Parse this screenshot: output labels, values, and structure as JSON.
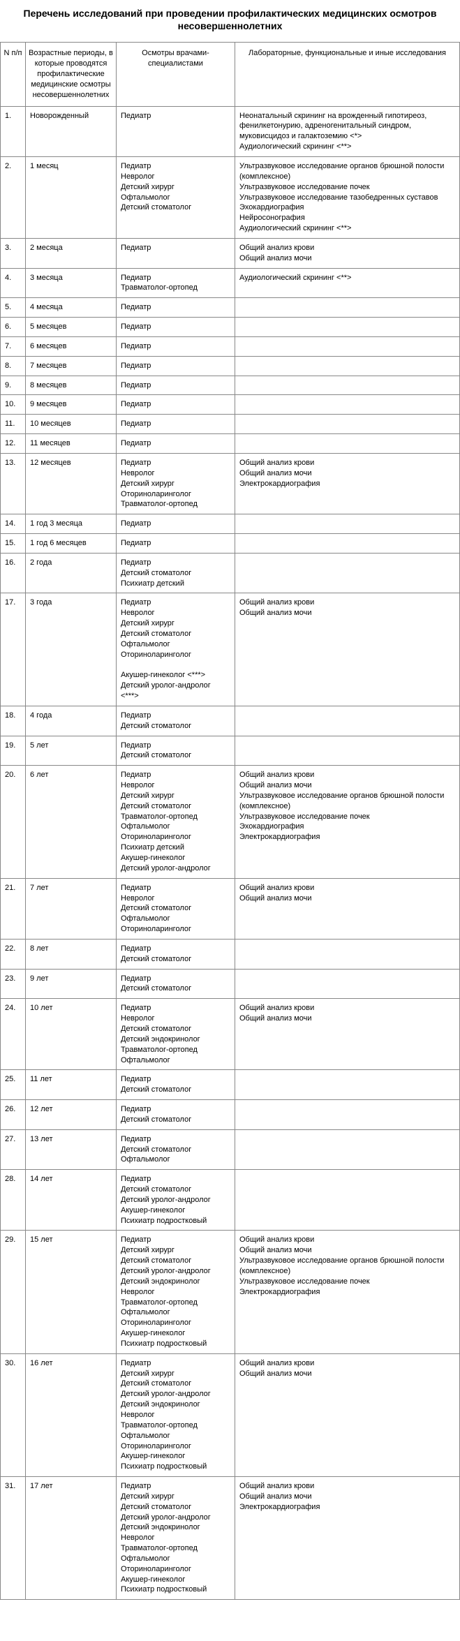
{
  "title": "Перечень исследований при проведении профилактических медицинских осмотров несовершеннолетних",
  "headers": {
    "num": "N п/п",
    "age": "Возрастные периоды, в которые проводятся профилактические медицинские осмотры несовершеннолетних",
    "doctors": "Осмотры врачами-специалистами",
    "labs": "Лабораторные, функциональные и иные исследования"
  },
  "rows": [
    {
      "n": "1.",
      "age": "Новорожденный",
      "doc": "Педиатр",
      "lab": "Неонатальный скрининг на врожденный гипотиреоз, фенилкетонурию, адреногенитальный синдром, муковисцидоз и галактоземию <*>\nАудиологический скрининг <**>"
    },
    {
      "n": "2.",
      "age": "1 месяц",
      "doc": "Педиатр\nНевролог\nДетский хирург\nОфтальмолог\nДетский стоматолог",
      "lab": "Ультразвуковое исследование органов брюшной полости (комплексное)\nУльтразвуковое исследование почек\nУльтразвуковое исследование тазобедренных суставов\nЭхокардиография\nНейросонография\nАудиологический скрининг <**>"
    },
    {
      "n": "3.",
      "age": "2 месяца",
      "doc": "Педиатр",
      "lab": "Общий анализ крови\nОбщий анализ мочи"
    },
    {
      "n": "4.",
      "age": "3 месяца",
      "doc": "Педиатр\nТравматолог-ортопед",
      "lab": "Аудиологический скрининг <**>"
    },
    {
      "n": "5.",
      "age": "4 месяца",
      "doc": "Педиатр",
      "lab": ""
    },
    {
      "n": "6.",
      "age": "5 месяцев",
      "doc": "Педиатр",
      "lab": ""
    },
    {
      "n": "7.",
      "age": "6 месяцев",
      "doc": "Педиатр",
      "lab": ""
    },
    {
      "n": "8.",
      "age": "7 месяцев",
      "doc": "Педиатр",
      "lab": ""
    },
    {
      "n": "9.",
      "age": "8 месяцев",
      "doc": "Педиатр",
      "lab": ""
    },
    {
      "n": "10.",
      "age": "9 месяцев",
      "doc": "Педиатр",
      "lab": ""
    },
    {
      "n": "11.",
      "age": "10 месяцев",
      "doc": "Педиатр",
      "lab": ""
    },
    {
      "n": "12.",
      "age": "11 месяцев",
      "doc": "Педиатр",
      "lab": ""
    },
    {
      "n": "13.",
      "age": "12 месяцев",
      "doc": "Педиатр\nНевролог\nДетский хирург\nОториноларинголог\nТравматолог-ортопед",
      "lab": "Общий анализ крови\nОбщий анализ мочи\nЭлектрокардиография"
    },
    {
      "n": "14.",
      "age": "1 год 3 месяца",
      "doc": "Педиатр",
      "lab": ""
    },
    {
      "n": "15.",
      "age": "1 год 6 месяцев",
      "doc": "Педиатр",
      "lab": ""
    },
    {
      "n": "16.",
      "age": "2 года",
      "doc": "Педиатр\nДетский стоматолог\nПсихиатр детский",
      "lab": ""
    },
    {
      "n": "17.",
      "age": "3 года",
      "doc": "Педиатр\nНевролог\nДетский хирург\nДетский стоматолог\nОфтальмолог\nОториноларинголог\n\nАкушер-гинеколог <***>\nДетский уролог-андролог <***>",
      "lab": "Общий анализ крови\nОбщий анализ мочи"
    },
    {
      "n": "18.",
      "age": "4 года",
      "doc": "Педиатр\nДетский стоматолог",
      "lab": ""
    },
    {
      "n": "19.",
      "age": "5 лет",
      "doc": "Педиатр\nДетский стоматолог",
      "lab": ""
    },
    {
      "n": "20.",
      "age": "6 лет",
      "doc": "Педиатр\nНевролог\nДетский хирург\nДетский стоматолог\nТравматолог-ортопед\nОфтальмолог\nОториноларинголог\nПсихиатр детский\nАкушер-гинеколог\nДетский уролог-андролог",
      "lab": "Общий анализ крови\nОбщий анализ мочи\nУльтразвуковое исследование органов брюшной полости (комплексное)\nУльтразвуковое исследование почек\nЭхокардиография\nЭлектрокардиография"
    },
    {
      "n": "21.",
      "age": "7 лет",
      "doc": "Педиатр\nНевролог\nДетский стоматолог\nОфтальмолог\nОториноларинголог",
      "lab": "Общий анализ крови\nОбщий анализ мочи"
    },
    {
      "n": "22.",
      "age": "8 лет",
      "doc": "Педиатр\nДетский стоматолог",
      "lab": ""
    },
    {
      "n": "23.",
      "age": "9 лет",
      "doc": "Педиатр\nДетский стоматолог",
      "lab": ""
    },
    {
      "n": "24.",
      "age": "10 лет",
      "doc": "Педиатр\nНевролог\nДетский стоматолог\nДетский эндокринолог\nТравматолог-ортопед\nОфтальмолог",
      "lab": "Общий анализ крови\nОбщий анализ мочи"
    },
    {
      "n": "25.",
      "age": "11 лет",
      "doc": "Педиатр\nДетский стоматолог",
      "lab": ""
    },
    {
      "n": "26.",
      "age": "12 лет",
      "doc": "Педиатр\nДетский стоматолог",
      "lab": ""
    },
    {
      "n": "27.",
      "age": "13 лет",
      "doc": "Педиатр\nДетский стоматолог\nОфтальмолог",
      "lab": ""
    },
    {
      "n": "28.",
      "age": "14 лет",
      "doc": "Педиатр\nДетский стоматолог\nДетский уролог-андролог\nАкушер-гинеколог\nПсихиатр подростковый",
      "lab": ""
    },
    {
      "n": "29.",
      "age": "15 лет",
      "doc": "Педиатр\nДетский хирург\nДетский стоматолог\nДетский уролог-андролог\nДетский эндокринолог\nНевролог\nТравматолог-ортопед\nОфтальмолог\nОториноларинголог\nАкушер-гинеколог\nПсихиатр подростковый",
      "lab": "Общий анализ крови\nОбщий анализ мочи\nУльтразвуковое исследование органов брюшной полости (комплексное)\nУльтразвуковое исследование почек\nЭлектрокардиография"
    },
    {
      "n": "30.",
      "age": "16 лет",
      "doc": "Педиатр\nДетский хирург\nДетский стоматолог\nДетский уролог-андролог\nДетский эндокринолог\nНевролог\nТравматолог-ортопед\nОфтальмолог\nОториноларинголог\nАкушер-гинеколог\nПсихиатр подростковый",
      "lab": "Общий анализ крови\nОбщий анализ мочи"
    },
    {
      "n": "31.",
      "age": "17 лет",
      "doc": "Педиатр\nДетский хирург\nДетский стоматолог\nДетский уролог-андролог\nДетский эндокринолог\nНевролог\nТравматолог-ортопед\nОфтальмолог\nОториноларинголог\nАкушер-гинеколог\nПсихиатр подростковый",
      "lab": "Общий анализ крови\nОбщий анализ мочи\nЭлектрокардиография"
    }
  ]
}
